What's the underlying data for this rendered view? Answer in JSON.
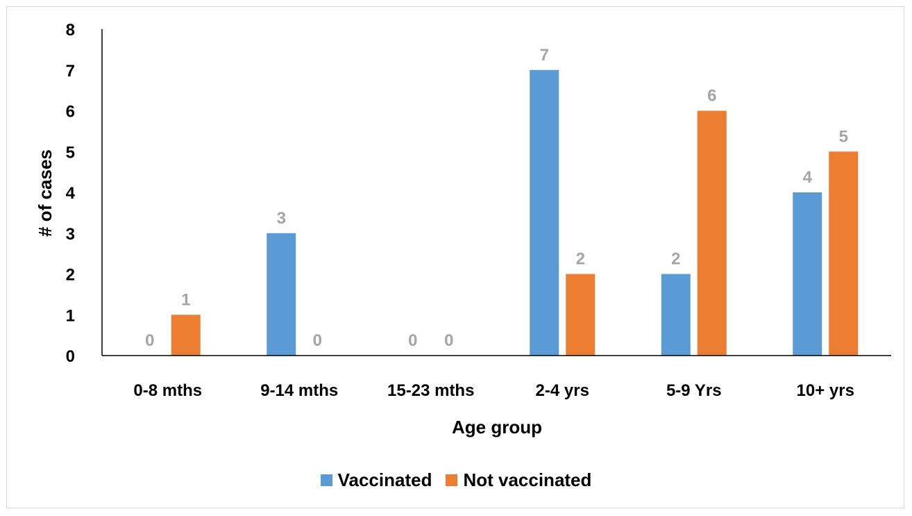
{
  "chart_data": {
    "type": "bar",
    "categories": [
      "0-8 mths",
      "9-14 mths",
      "15-23 mths",
      "2-4 yrs",
      "5-9 Yrs",
      "10+ yrs"
    ],
    "series": [
      {
        "name": "Vaccinated",
        "values": [
          0,
          3,
          0,
          7,
          2,
          4
        ],
        "color": "#5b9bd5"
      },
      {
        "name": "Not vaccinated",
        "values": [
          1,
          0,
          0,
          2,
          6,
          5
        ],
        "color": "#ed7d31"
      }
    ],
    "xlabel": "Age group",
    "ylabel": "# of cases",
    "ylim": [
      0,
      8
    ],
    "yticks": [
      0,
      1,
      2,
      3,
      4,
      5,
      6,
      7,
      8
    ],
    "grid": false,
    "legend_position": "bottom",
    "data_label_color": "#a5a5a5"
  },
  "legend": {
    "items": [
      {
        "label": "Vaccinated",
        "color": "#5b9bd5"
      },
      {
        "label": "Not vaccinated",
        "color": "#ed7d31"
      }
    ]
  }
}
